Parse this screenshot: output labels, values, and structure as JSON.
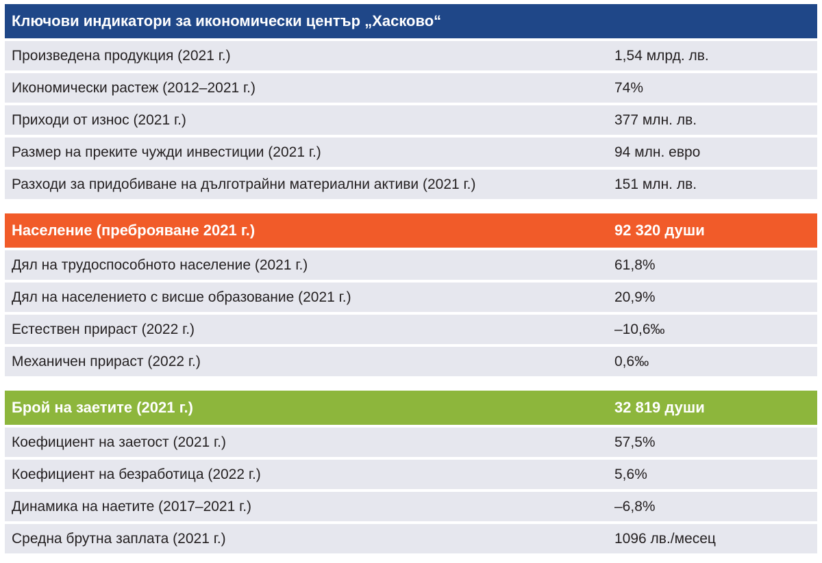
{
  "economic": {
    "title": "Ключови индикатори за икономически център „Хасково“",
    "rows": [
      {
        "label": "Произведена продукция (2021 г.)",
        "value": "1,54 млрд. лв."
      },
      {
        "label": "Икономически растеж (2012–2021 г.)",
        "value": "74%"
      },
      {
        "label": "Приходи от износ (2021 г.)",
        "value": "377 млн. лв."
      },
      {
        "label": "Размер на преките чужди инвестиции (2021 г.)",
        "value": "94 млн. евро"
      },
      {
        "label": "Разходи за придобиване на дълготрайни материални активи (2021 г.)",
        "value": "151 млн. лв."
      }
    ]
  },
  "population": {
    "title": "Население (преброяване 2021 г.)",
    "title_value": "92 320 души",
    "rows": [
      {
        "label": "Дял на трудоспособното население (2021 г.)",
        "value": "61,8%"
      },
      {
        "label": "Дял на населението с висше образование (2021 г.)",
        "value": "20,9%"
      },
      {
        "label": "Естествен прираст (2022 г.)",
        "value": "–10,6‰"
      },
      {
        "label": "Механичен прираст (2022 г.)",
        "value": "0,6‰"
      }
    ]
  },
  "employment": {
    "title": "Брой на заетите (2021 г.)",
    "title_value": "32 819 души",
    "rows": [
      {
        "label": "Коефициент на заетост (2021 г.)",
        "value": "57,5%"
      },
      {
        "label": "Коефициент на безработица (2022 г.)",
        "value": "5,6%"
      },
      {
        "label": "Динамика на наетите (2017–2021 г.)",
        "value": "–6,8%"
      },
      {
        "label": "Средна брутна заплата (2021 г.)",
        "value": "1096 лв./месец"
      }
    ]
  },
  "colors": {
    "blue_header": "#1f4788",
    "orange_header": "#f15b29",
    "green_header": "#8db63c",
    "row_background": "#e6e7ee"
  }
}
